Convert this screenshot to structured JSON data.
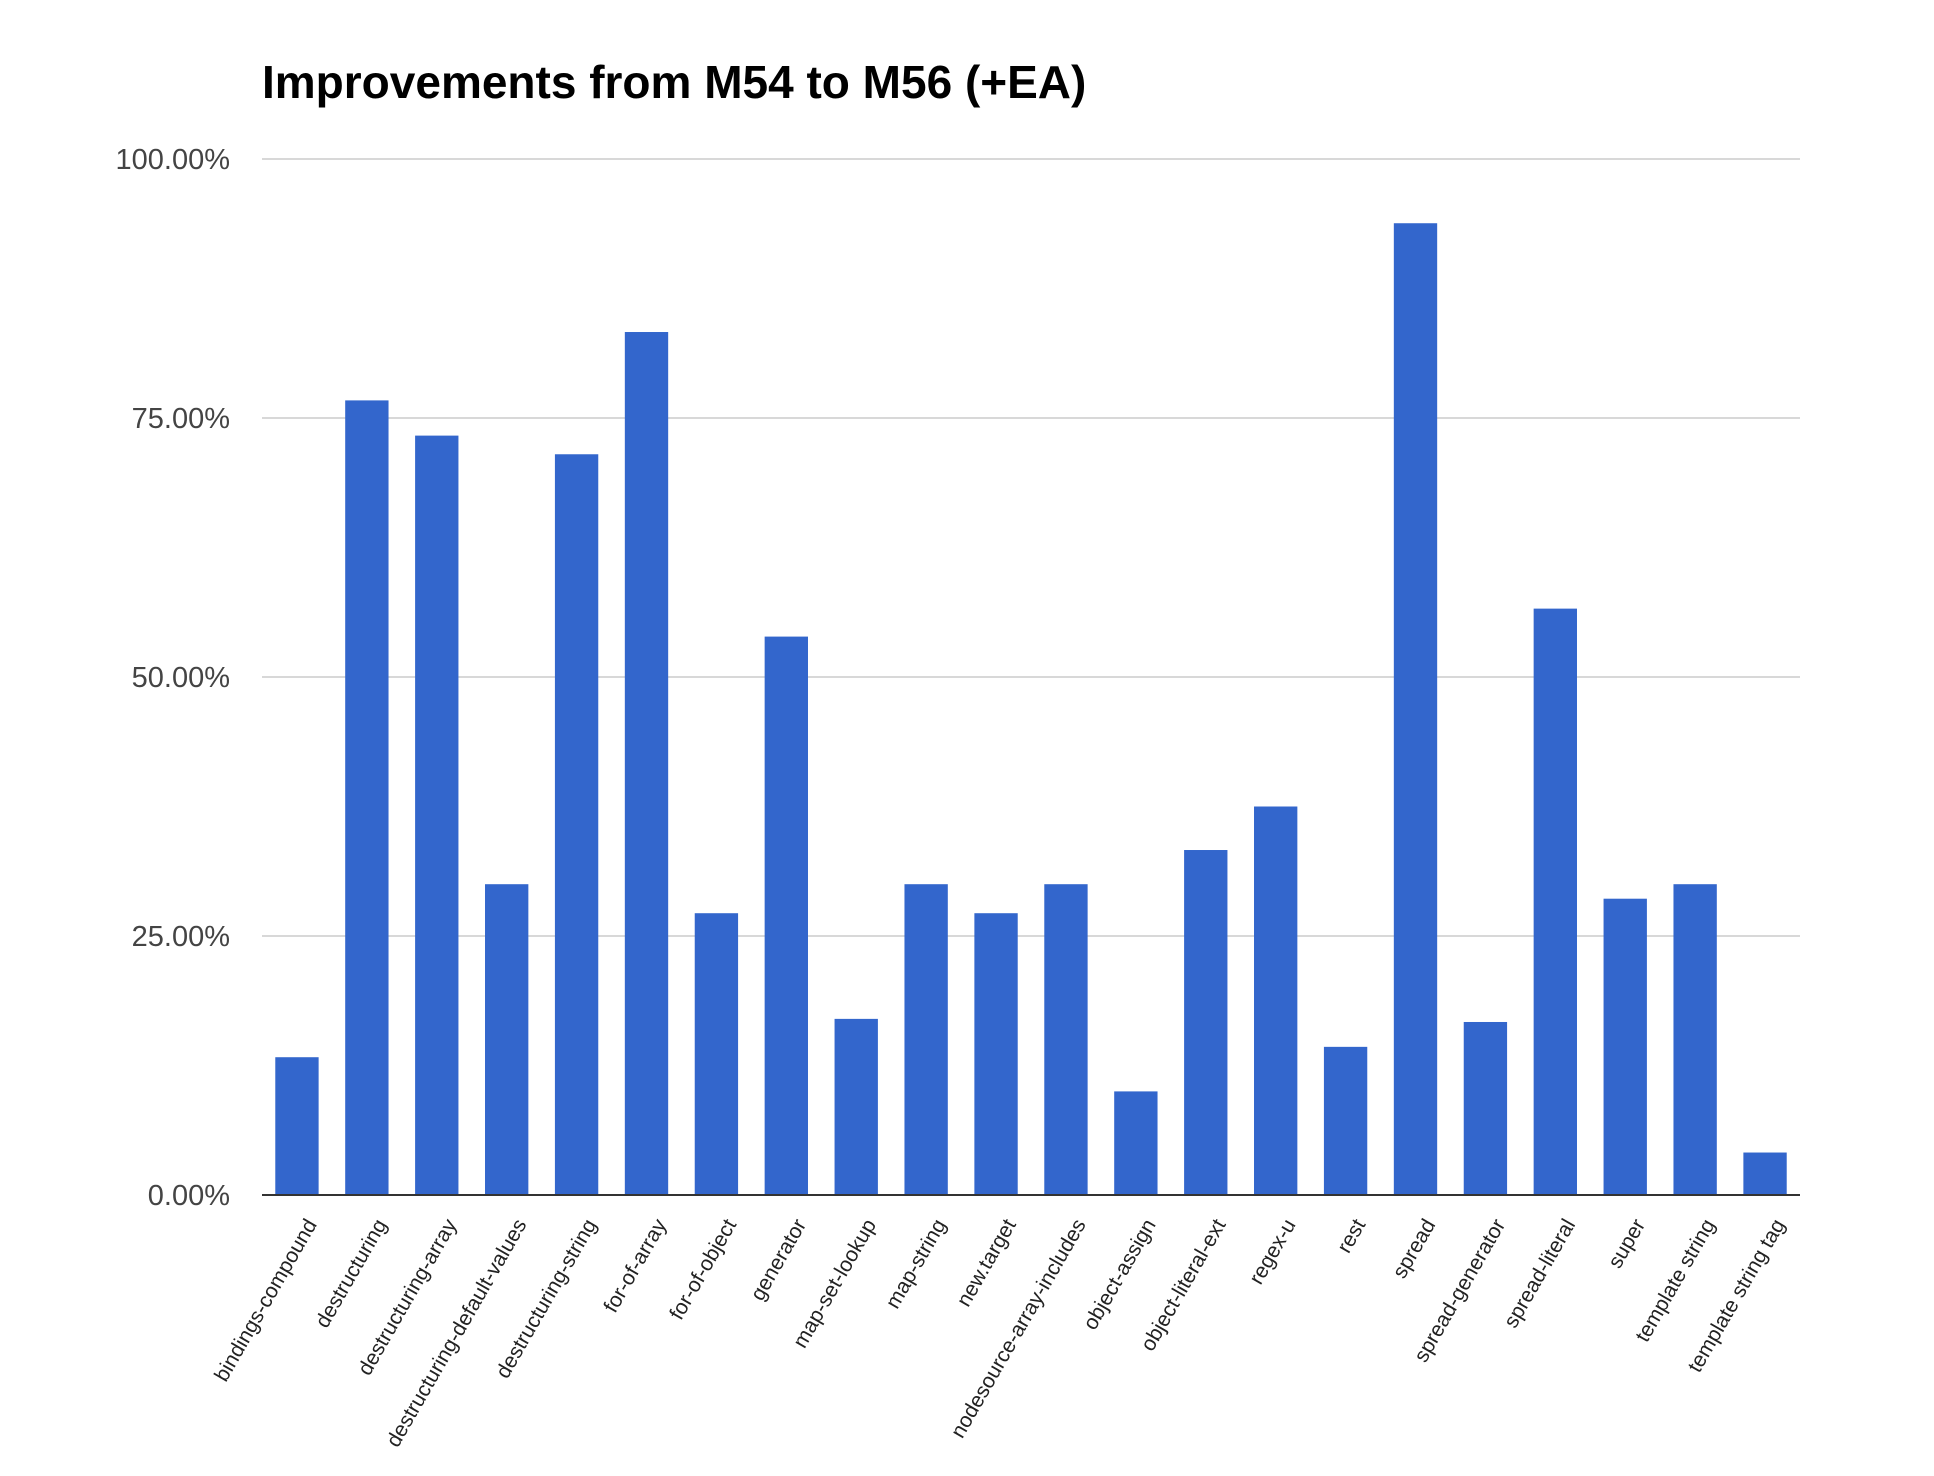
{
  "chart_data": {
    "type": "bar",
    "title": "Improvements from M54 to M56 (+EA)",
    "xlabel": "",
    "ylabel": "",
    "ylim": [
      0,
      100
    ],
    "y_ticks": [
      {
        "value": 0,
        "label": "0.00%"
      },
      {
        "value": 25,
        "label": "25.00%"
      },
      {
        "value": 50,
        "label": "50.00%"
      },
      {
        "value": 75,
        "label": "75.00%"
      },
      {
        "value": 100,
        "label": "100.00%"
      }
    ],
    "grid": true,
    "legend": "none",
    "bar_color": "#3366cc",
    "categories": [
      "bindings-compound",
      "destructuring",
      "destructuring-array",
      "destructuring-default-values",
      "destructuring-string",
      "for-of-array",
      "for-of-object",
      "generator",
      "map-set-lookup",
      "map-string",
      "new.target",
      "nodesource-array-includes",
      "object-assign",
      "object-literal-ext",
      "regex-u",
      "rest",
      "spread",
      "spread-generator",
      "spread-literal",
      "super",
      "template string",
      "template string tag"
    ],
    "values": [
      13.3,
      76.7,
      73.3,
      30.0,
      71.5,
      83.3,
      27.2,
      53.9,
      17.0,
      30.0,
      27.2,
      30.0,
      10.0,
      33.3,
      37.5,
      14.3,
      93.8,
      16.7,
      56.6,
      28.6,
      30.0,
      4.1
    ]
  }
}
